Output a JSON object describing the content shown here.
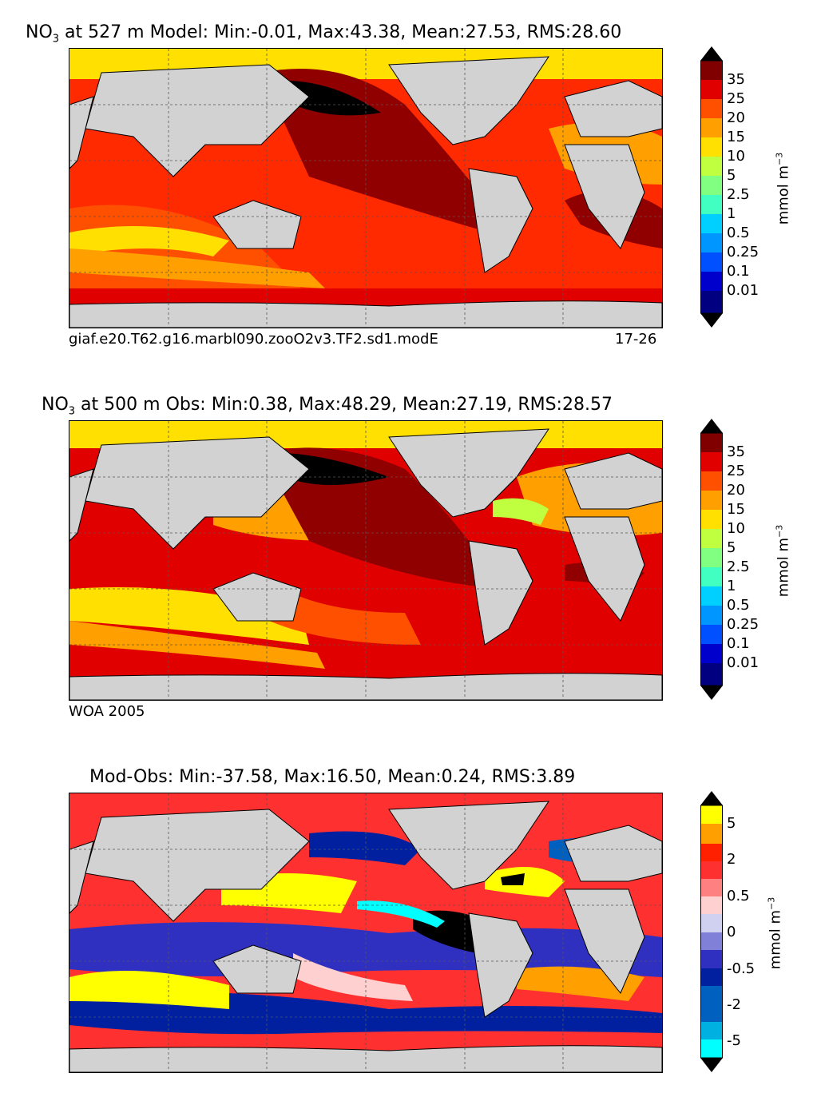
{
  "panels": [
    {
      "title_prefix": "NO",
      "title_sub": "3",
      "title_text": " at 527 m Model: Min:-0.01, Max:43.38, Mean:27.53, RMS:28.60",
      "caption_left": "giaf.e20.T62.g16.marbl090.zooO2v3.TF2.sd1.modE",
      "caption_right": "17-26",
      "colorbar_labels": [
        "35",
        "25",
        "20",
        "15",
        "10",
        "5",
        "2.5",
        "1",
        "0.5",
        "0.25",
        "0.1",
        "0.01"
      ],
      "unit": "mmol m",
      "unit_sup": "−3"
    },
    {
      "title_prefix": "NO",
      "title_sub": "3",
      "title_text": " at 500 m Obs: Min:0.38, Max:48.29, Mean:27.19, RMS:28.57",
      "caption_left": "WOA 2005",
      "caption_right": "",
      "colorbar_labels": [
        "35",
        "25",
        "20",
        "15",
        "10",
        "5",
        "2.5",
        "1",
        "0.5",
        "0.25",
        "0.1",
        "0.01"
      ],
      "unit": "mmol m",
      "unit_sup": "−3"
    },
    {
      "title_prefix": "",
      "title_sub": "",
      "title_text": "Mod-Obs: Min:-37.58, Max:16.50, Mean:0.24, RMS:3.89",
      "caption_left": "",
      "caption_right": "",
      "colorbar_labels": [
        "5",
        "2",
        "0.5",
        "0",
        "-0.5",
        "-2",
        "-5"
      ],
      "unit": "mmol m",
      "unit_sup": "−3"
    }
  ],
  "colors": {
    "land": "#d2d2d2",
    "no3_scale": [
      "#000080",
      "#0000cd",
      "#0050ff",
      "#0096ff",
      "#00d0ff",
      "#40ffc0",
      "#80ff80",
      "#c0ff40",
      "#ffe000",
      "#ffa000",
      "#ff5000",
      "#e00000",
      "#800000"
    ],
    "diff_scale": [
      "#00ffff",
      "#00b0e0",
      "#0060c0",
      "#0020a0",
      "#3030c0",
      "#8080d8",
      "#d0d0f0",
      "#ffd0d0",
      "#ff8080",
      "#ff3030",
      "#ff2000",
      "#ffa000",
      "#ffff00"
    ]
  }
}
